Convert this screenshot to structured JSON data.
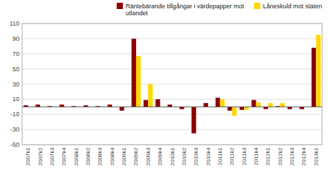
{
  "chart_data": {
    "type": "bar",
    "categories": [
      "2007k1",
      "2007k2",
      "2007k3",
      "2007k4",
      "2008k1",
      "2008k2",
      "2008k3",
      "2008k4",
      "2009k1",
      "2009k2",
      "2009k3",
      "2009k4",
      "2010k1",
      "2010k2",
      "2010k3",
      "2010k4",
      "2011k1",
      "2011k2",
      "2011k3",
      "2011k4",
      "2012k1",
      "2012k2",
      "2012k3",
      "2012k4",
      "2013k1"
    ],
    "series": [
      {
        "name": "Räntebärande tillgångar i värdepapper mot\nutlandet",
        "color": "#8B0000",
        "values": [
          2,
          3,
          1,
          3,
          1,
          2,
          1,
          3,
          -5,
          90,
          9,
          10,
          3,
          -3,
          -35,
          5,
          12,
          -5,
          -4,
          9,
          -3,
          1,
          -3,
          -3,
          78
        ]
      },
      {
        "name": "Låneskuld mot staten",
        "color": "#FFD700",
        "values": [
          0,
          0,
          0,
          0,
          0,
          0,
          0,
          0,
          0,
          67,
          30,
          0,
          0,
          0,
          0,
          0,
          10,
          -12,
          -4,
          6,
          5,
          5,
          0,
          0,
          95
        ]
      }
    ],
    "ylim": [
      -50,
      110
    ],
    "yticks": [
      -50,
      -30,
      -10,
      10,
      30,
      50,
      70,
      90,
      110
    ],
    "grid": true,
    "legend": "upper right"
  }
}
